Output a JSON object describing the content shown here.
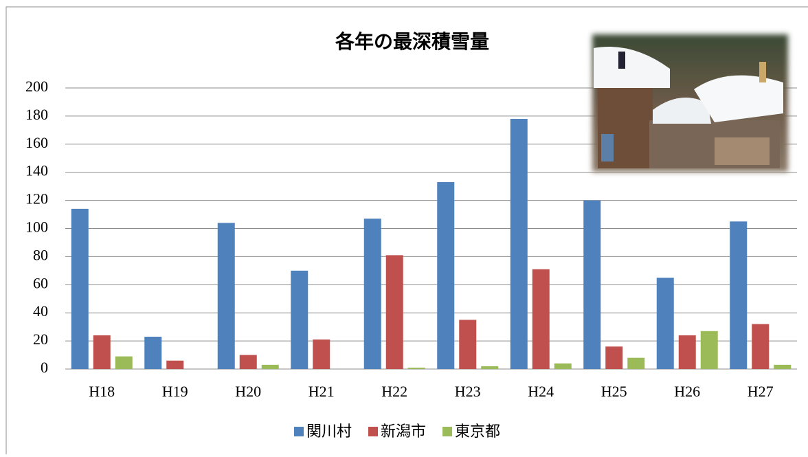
{
  "chart_data": {
    "type": "bar",
    "title": "各年の最深積雪量",
    "categories": [
      "H18",
      "H19",
      "H20",
      "H21",
      "H22",
      "H23",
      "H24",
      "H25",
      "H26",
      "H27"
    ],
    "series": [
      {
        "name": "関川村",
        "color": "#4f81bd",
        "values": [
          114,
          23,
          104,
          70,
          107,
          133,
          178,
          120,
          65,
          105
        ]
      },
      {
        "name": "新潟市",
        "color": "#c0504d",
        "values": [
          24,
          6,
          10,
          21,
          81,
          35,
          71,
          16,
          24,
          32
        ]
      },
      {
        "name": "東京都",
        "color": "#9bbb59",
        "values": [
          9,
          0,
          3,
          0,
          1,
          2,
          4,
          8,
          27,
          3
        ]
      }
    ],
    "ylim": [
      0,
      200
    ],
    "yticks": [
      0,
      20,
      40,
      60,
      80,
      100,
      120,
      140,
      160,
      180,
      200
    ],
    "grid": true,
    "legend": "bottom"
  }
}
